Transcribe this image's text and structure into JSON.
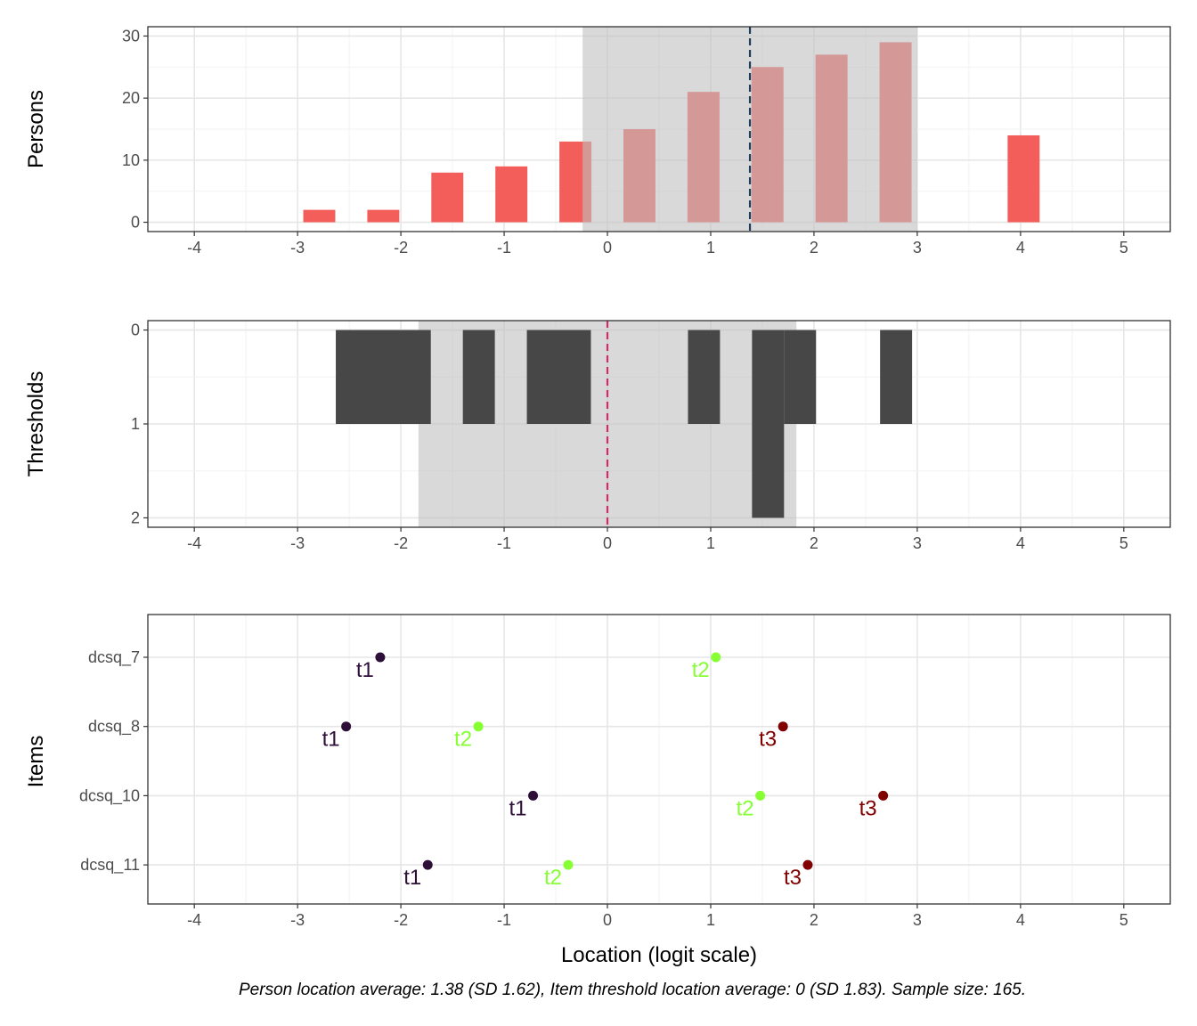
{
  "chart_data": [
    {
      "type": "bar",
      "panel": "persons",
      "ylabel": "Persons",
      "xlim": [
        -4.45,
        5.45
      ],
      "ylim": [
        -1.5,
        31.5
      ],
      "x_ticks": [
        -4,
        -3,
        -2,
        -1,
        0,
        1,
        2,
        3,
        4,
        5
      ],
      "x_tick_labels": [
        "-4",
        "-3",
        "-2",
        "-1",
        "0",
        "1",
        "2",
        "3",
        "4",
        "5"
      ],
      "y_ticks": [
        0,
        10,
        20,
        30
      ],
      "y_tick_labels": [
        "0",
        "10",
        "20",
        "30"
      ],
      "bar_color": "#f35e5a",
      "bar_width": 0.31,
      "bars": [
        {
          "x": -2.79,
          "value": 2
        },
        {
          "x": -2.17,
          "value": 2
        },
        {
          "x": -1.55,
          "value": 8
        },
        {
          "x": -0.93,
          "value": 9
        },
        {
          "x": -0.31,
          "value": 13
        },
        {
          "x": 0.31,
          "value": 15
        },
        {
          "x": 0.93,
          "value": 21
        },
        {
          "x": 1.55,
          "value": 25
        },
        {
          "x": 2.17,
          "value": 27
        },
        {
          "x": 2.79,
          "value": 29
        },
        {
          "x": 4.03,
          "value": 14
        }
      ],
      "band": {
        "from": -0.24,
        "to": 3.0,
        "color": "#bfbfbf",
        "opacity": 0.6
      },
      "mean_line": {
        "x": 1.38,
        "color": "#1f3d5c",
        "style": "dashed"
      }
    },
    {
      "type": "bar",
      "panel": "thresholds",
      "ylabel": "Thresholds",
      "xlim": [
        -4.45,
        5.45
      ],
      "ylim": [
        2.1,
        -0.1
      ],
      "y_reversed": true,
      "x_ticks": [
        -4,
        -3,
        -2,
        -1,
        0,
        1,
        2,
        3,
        4,
        5
      ],
      "x_tick_labels": [
        "-4",
        "-3",
        "-2",
        "-1",
        "0",
        "1",
        "2",
        "3",
        "4",
        "5"
      ],
      "y_ticks": [
        0,
        1,
        2
      ],
      "y_tick_labels": [
        "0",
        "1",
        "2"
      ],
      "bar_color": "#474747",
      "bars": [
        {
          "from": -2.63,
          "to": -1.71,
          "value": 1
        },
        {
          "from": -1.4,
          "to": -1.09,
          "value": 1
        },
        {
          "from": -0.78,
          "to": -0.16,
          "value": 1
        },
        {
          "from": 0.78,
          "to": 1.09,
          "value": 1
        },
        {
          "from": 1.4,
          "to": 1.71,
          "value": 2
        },
        {
          "from": 1.71,
          "to": 2.02,
          "value": 1
        },
        {
          "from": 2.64,
          "to": 2.95,
          "value": 1
        }
      ],
      "band": {
        "from": -1.83,
        "to": 1.83,
        "color": "#bfbfbf",
        "opacity": 0.6
      },
      "mean_line": {
        "x": 0,
        "color": "#d42a6a",
        "style": "dashed"
      }
    },
    {
      "type": "scatter",
      "panel": "items",
      "ylabel": "Items",
      "xlabel": "Location (logit scale)",
      "xlim": [
        -4.45,
        5.45
      ],
      "x_ticks": [
        -4,
        -3,
        -2,
        -1,
        0,
        1,
        2,
        3,
        4,
        5
      ],
      "x_tick_labels": [
        "-4",
        "-3",
        "-2",
        "-1",
        "0",
        "1",
        "2",
        "3",
        "4",
        "5"
      ],
      "categories": [
        "dcsq_7",
        "dcsq_8",
        "dcsq_10",
        "dcsq_11"
      ],
      "threshold_colors": {
        "t1": "#2d0f38",
        "t2": "#86ff33",
        "t3": "#800000"
      },
      "points": [
        {
          "item": "dcsq_7",
          "threshold": "t1",
          "x": -2.2
        },
        {
          "item": "dcsq_7",
          "threshold": "t2",
          "x": 1.05
        },
        {
          "item": "dcsq_8",
          "threshold": "t1",
          "x": -2.53
        },
        {
          "item": "dcsq_8",
          "threshold": "t2",
          "x": -1.25
        },
        {
          "item": "dcsq_8",
          "threshold": "t3",
          "x": 1.7
        },
        {
          "item": "dcsq_10",
          "threshold": "t1",
          "x": -0.72
        },
        {
          "item": "dcsq_10",
          "threshold": "t2",
          "x": 1.48
        },
        {
          "item": "dcsq_10",
          "threshold": "t3",
          "x": 2.67
        },
        {
          "item": "dcsq_11",
          "threshold": "t1",
          "x": -1.74
        },
        {
          "item": "dcsq_11",
          "threshold": "t2",
          "x": -0.38
        },
        {
          "item": "dcsq_11",
          "threshold": "t3",
          "x": 1.94
        }
      ]
    }
  ],
  "caption": "Person location average: 1.38 (SD 1.62), Item threshold location average: 0 (SD 1.83). Sample size: 165."
}
